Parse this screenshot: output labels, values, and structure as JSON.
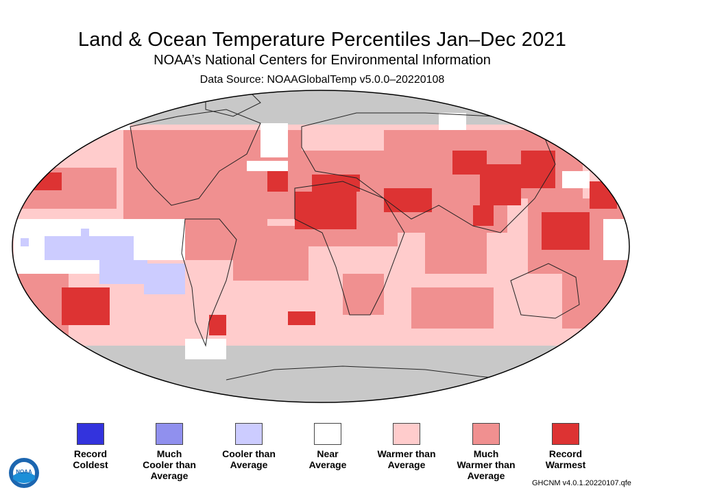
{
  "title": "Land & Ocean Temperature Percentiles Jan–Dec 2021",
  "subtitle": "NOAA’s National Centers for Environmental Information",
  "source": "Data Source: NOAAGlobalTemp v5.0.0–20220108",
  "footnote": "GHCNM v4.0.1.20220107.qfe",
  "logo_text": "NOAA",
  "colors": {
    "record_coldest": "#3333dd",
    "much_cooler": "#9090ee",
    "cooler": "#ccccff",
    "near": "#ffffff",
    "warmer": "#ffcccc",
    "much_warmer": "#f09090",
    "record_warmest": "#dd3333",
    "no_data": "#c8c8c8"
  },
  "legend": [
    {
      "label": "Record\nColdest",
      "color": "#3333dd"
    },
    {
      "label": "Much\nCooler than\nAverage",
      "color": "#9090ee"
    },
    {
      "label": "Cooler than\nAverage",
      "color": "#ccccff"
    },
    {
      "label": "Near\nAverage",
      "color": "#ffffff"
    },
    {
      "label": "Warmer than\nAverage",
      "color": "#ffcccc"
    },
    {
      "label": "Much\nWarmer than\nAverage",
      "color": "#f09090"
    },
    {
      "label": "Record\nWarmest",
      "color": "#dd3333"
    }
  ]
}
